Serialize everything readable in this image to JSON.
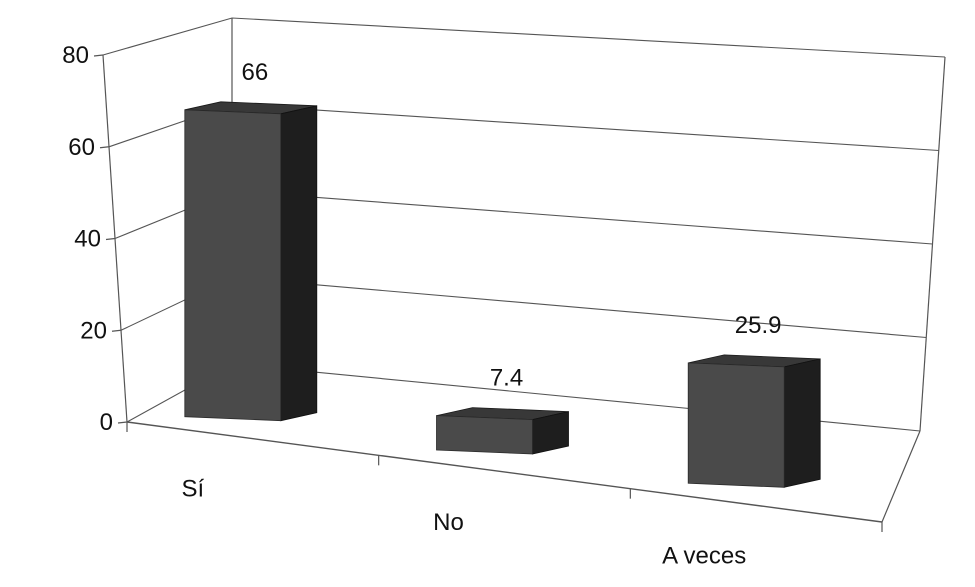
{
  "chart_data": {
    "type": "bar",
    "style": "3d-column",
    "categories": [
      "Sí",
      "No",
      "A veces"
    ],
    "values": [
      66,
      7.4,
      25.9
    ],
    "value_labels": [
      "66",
      "7.4",
      "25.9"
    ],
    "yticks": [
      "0",
      "20",
      "40",
      "60",
      "80"
    ],
    "ylim": [
      0,
      80
    ],
    "grid": true,
    "legend": "none",
    "colors": {
      "bar_front": "#4a4a4a",
      "bar_top": "#383838",
      "bar_side": "#1e1e1e",
      "gridline": "#555555",
      "frame": "#555555"
    }
  }
}
